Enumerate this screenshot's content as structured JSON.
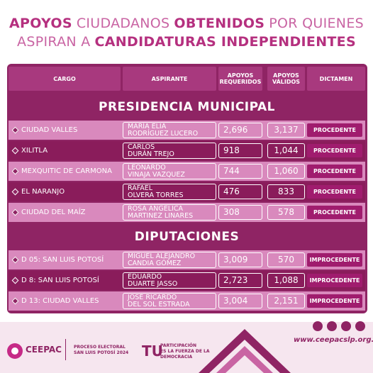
{
  "header": {
    "title_lines": [
      [
        {
          "text": "APOYOS",
          "bold": true
        },
        {
          "text": "CIUDADANOS",
          "bold": false
        },
        {
          "text": "OBTENIDOS",
          "bold": true
        },
        {
          "text": "POR QUIENES",
          "bold": false
        }
      ],
      [
        {
          "text": "ASPIRAN A",
          "bold": false
        },
        {
          "text": "CANDIDATURAS INDEPENDIENTES",
          "bold": true
        }
      ]
    ]
  },
  "table": {
    "columns": [
      [
        "CARGO"
      ],
      [
        "ASPIRANTE"
      ],
      [
        "APOYOS",
        "REQUERIDOS"
      ],
      [
        "APOYOS",
        "VÁLIDOS"
      ],
      [
        "DICTAMEN"
      ]
    ],
    "sections": [
      {
        "title": "PRESIDENCIA MUNICIPAL",
        "rows": [
          [
            "CIUDAD VALLES",
            [
              "MARÍA ELIA",
              "RODRÍGUEZ LUCERO"
            ],
            "2,696",
            "3,137",
            "PROCEDENTE"
          ],
          [
            "XILITLA",
            [
              "CARLOS",
              "DURÁN TREJO"
            ],
            "918",
            "1,044",
            "PROCEDENTE"
          ],
          [
            "MEXQUITIC DE CARMONA",
            [
              "LEONARDO",
              "VINAJA VAZQUEZ"
            ],
            "744",
            "1,060",
            "PROCEDENTE"
          ],
          [
            "EL NARANJO",
            [
              "RAFAEL",
              "OLVERA TORRES"
            ],
            "476",
            "833",
            "PROCEDENTE"
          ],
          [
            "CIUDAD DEL MAÍZ",
            [
              "ROSA ANGELICA",
              "MARTINEZ LINARES"
            ],
            "308",
            "578",
            "PROCEDENTE"
          ]
        ]
      },
      {
        "title": "DIPUTACIONES",
        "rows": [
          [
            "D 05: SAN LUIS POTOSÍ",
            [
              "MIGUEL ALEJANDRO",
              "CANDIA GÓMEZ"
            ],
            "3,009",
            "570",
            "IMPROCEDENTE"
          ],
          [
            "D 8: SAN LUIS POTOSÍ",
            [
              "EDUARDO",
              "DUARTE JASSO"
            ],
            "2,723",
            "1,088",
            "IMPROCEDENTE"
          ],
          [
            "D 13: CIUDAD VALLES",
            [
              "JOSÉ RICARDO",
              "DEL SOL ESTRADA"
            ],
            "3,004",
            "2,151",
            "IMPROCEDENTE"
          ]
        ]
      }
    ]
  },
  "footer": {
    "ceepac": "CEEPAC",
    "proceso": [
      "PROCESO ELECTORAL",
      "SAN LUIS POTOSÍ 2024"
    ],
    "tu": "TU",
    "participacion": [
      "PARTICIPACIÓN",
      "ES LA FUERZA DE LA",
      "DEMOCRACIA"
    ],
    "url": "www.ceepacslp.org.mx"
  }
}
